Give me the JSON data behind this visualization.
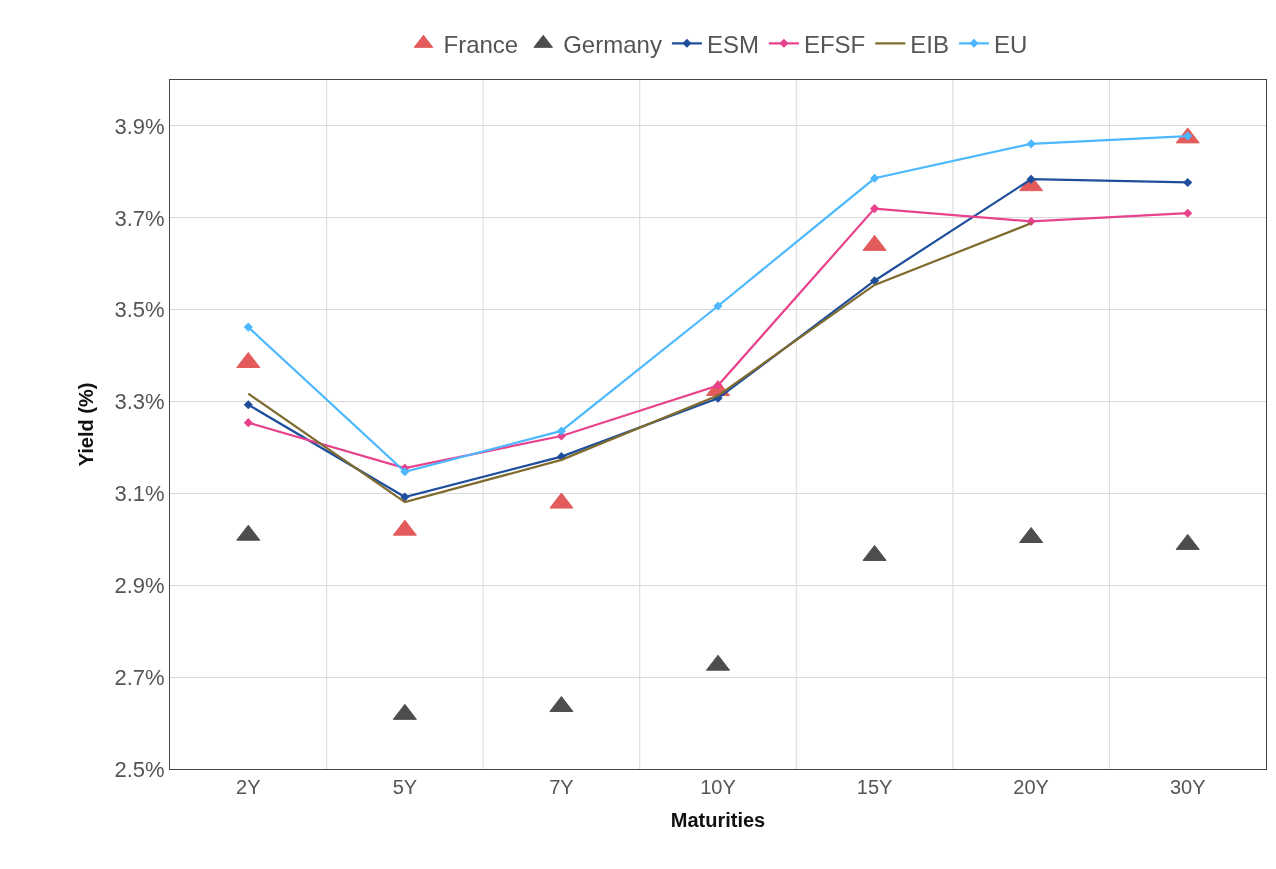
{
  "chart_data": {
    "type": "line",
    "xlabel": "Maturities",
    "ylabel": "Yield (%)",
    "categories": [
      "2Y",
      "5Y",
      "7Y",
      "10Y",
      "15Y",
      "20Y",
      "30Y"
    ],
    "series": [
      {
        "name": "France",
        "type": "scatter",
        "marker": "triangle",
        "color": "#e04a4a",
        "values": [
          3.385,
          3.02,
          3.079,
          3.324,
          3.64,
          3.77,
          3.874
        ]
      },
      {
        "name": "Germany",
        "type": "scatter",
        "marker": "triangle",
        "color": "#3a3a3a",
        "values": [
          3.009,
          2.619,
          2.636,
          2.726,
          2.965,
          3.004,
          2.989
        ]
      },
      {
        "name": "ESM",
        "marker": "diamond",
        "color": "#1f4e9c",
        "values": [
          3.293,
          3.092,
          3.18,
          3.307,
          3.563,
          3.784,
          3.777
        ]
      },
      {
        "name": "EFSF",
        "marker": "diamond",
        "color": "#e8428c",
        "values": [
          3.254,
          3.155,
          3.225,
          3.335,
          3.72,
          3.692,
          3.71
        ]
      },
      {
        "name": "EIB",
        "marker": "none",
        "color": "#7f6b2e",
        "values": [
          3.317,
          3.081,
          3.173,
          3.313,
          3.554,
          3.688,
          null
        ]
      },
      {
        "name": "EU",
        "marker": "diamond",
        "color": "#4db8ff",
        "values": [
          3.462,
          3.147,
          3.236,
          3.508,
          3.786,
          3.861,
          3.878
        ]
      }
    ],
    "ylim": [
      2.5,
      4.0
    ],
    "yticks": [
      {
        "value": 2.5,
        "label": "2.5%"
      },
      {
        "value": 2.7,
        "label": "2.7%"
      },
      {
        "value": 2.9,
        "label": "2.9%"
      },
      {
        "value": 3.1,
        "label": "3.1%"
      },
      {
        "value": 3.3,
        "label": "3.3%"
      },
      {
        "value": 3.5,
        "label": "3.5%"
      },
      {
        "value": 3.7,
        "label": "3.7%"
      },
      {
        "value": 3.9,
        "label": "3.9%"
      }
    ],
    "grid": true,
    "legend": "top"
  }
}
